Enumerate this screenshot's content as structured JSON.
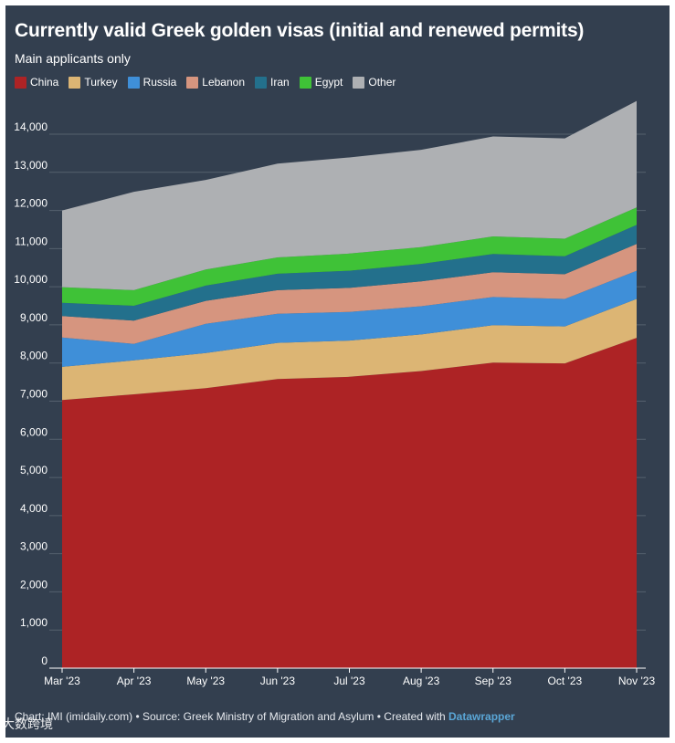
{
  "chart_data": {
    "type": "area",
    "stacked": true,
    "title": "Currently valid Greek golden visas (initial and renewed permits)",
    "subtitle": "Main applicants only",
    "xlabel": "",
    "ylabel": "",
    "x": [
      "Mar '23",
      "Apr '23",
      "May '23",
      "Jun '23",
      "Jul '23",
      "Aug '23",
      "Sep '23",
      "Oct '23",
      "Nov '23"
    ],
    "ylim": [
      0,
      14800
    ],
    "yticks": [
      {
        "value": 0,
        "label": "0"
      },
      {
        "value": 1000,
        "label": "1,000"
      },
      {
        "value": 2000,
        "label": "2,000"
      },
      {
        "value": 3000,
        "label": "3,000"
      },
      {
        "value": 4000,
        "label": "4,000"
      },
      {
        "value": 5000,
        "label": "5,000"
      },
      {
        "value": 6000,
        "label": "6,000"
      },
      {
        "value": 7000,
        "label": "7,000"
      },
      {
        "value": 8000,
        "label": "8,000"
      },
      {
        "value": 9000,
        "label": "9,000"
      },
      {
        "value": 10000,
        "label": "10,000"
      },
      {
        "value": 11000,
        "label": "11,000"
      },
      {
        "value": 12000,
        "label": "12,000"
      },
      {
        "value": 13000,
        "label": "13,000"
      },
      {
        "value": 14000,
        "label": "14,000"
      }
    ],
    "grid": true,
    "legend_position": "top-left",
    "series": [
      {
        "name": "China",
        "color": "#ad2325",
        "values": [
          7030,
          7180,
          7340,
          7580,
          7640,
          7790,
          8010,
          7990,
          8660
        ]
      },
      {
        "name": "Turkey",
        "color": "#dcb574",
        "values": [
          870,
          890,
          920,
          950,
          950,
          960,
          980,
          970,
          1020
        ]
      },
      {
        "name": "Russia",
        "color": "#3f8fd8",
        "values": [
          770,
          430,
          770,
          760,
          750,
          740,
          740,
          720,
          740
        ]
      },
      {
        "name": "Lebanon",
        "color": "#d6957f",
        "values": [
          560,
          610,
          600,
          620,
          630,
          650,
          650,
          650,
          700
        ]
      },
      {
        "name": "Iran",
        "color": "#23708c",
        "values": [
          350,
          390,
          400,
          430,
          450,
          460,
          480,
          470,
          500
        ]
      },
      {
        "name": "Egypt",
        "color": "#3fc237",
        "values": [
          410,
          410,
          420,
          430,
          450,
          440,
          460,
          460,
          460
        ]
      },
      {
        "name": "Other",
        "color": "#aeb0b3",
        "values": [
          2010,
          2580,
          2350,
          2460,
          2520,
          2550,
          2620,
          2630,
          2790
        ]
      }
    ]
  },
  "footer": {
    "text": "Chart: IMI (imidaily.com) • Source: Greek Ministry of Migration and Asylum • Created with ",
    "link": "Datawrapper"
  },
  "watermark": "大数跨境",
  "colors": {
    "background": "#333f4f",
    "gridline": "#55606e",
    "text": "#ffffff"
  }
}
